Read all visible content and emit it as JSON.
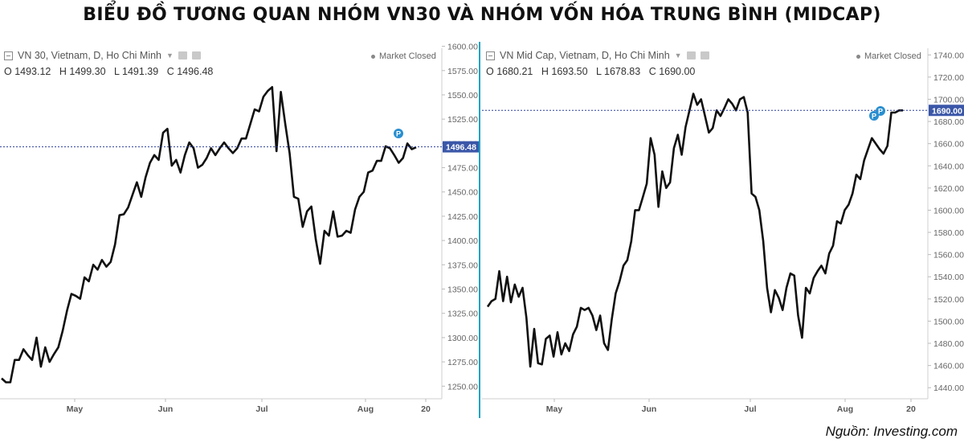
{
  "title": "BIỂU ĐỒ TƯƠNG QUAN NHÓM VN30 VÀ NHÓM VỐN HÓA TRUNG BÌNH (MIDCAP)",
  "source": "Nguồn: Investing.com",
  "panels": [
    {
      "legend": "VN 30, Vietnam, D, Ho Chi Minh",
      "market_status": "Market Closed",
      "ohlc": {
        "o": "O 1493.12",
        "h": "H 1499.30",
        "l": "L 1491.39",
        "c": "C 1496.48"
      }
    },
    {
      "legend": "VN Mid Cap, Vietnam, D, Ho Chi Minh",
      "market_status": "Market Closed",
      "ohlc": {
        "o": "O 1680.21",
        "h": "H 1693.50",
        "l": "L 1678.83",
        "c": "C 1690.00"
      }
    }
  ],
  "chart_data": [
    {
      "type": "line",
      "series": [
        {
          "values": [
            1258,
            1254,
            1254,
            1277,
            1277,
            1288,
            1282,
            1277,
            1300,
            1270,
            1290,
            1275,
            1283,
            1290,
            1307,
            1328,
            1345,
            1343,
            1340,
            1362,
            1358,
            1375,
            1370,
            1380,
            1373,
            1378,
            1396,
            1426,
            1427,
            1434,
            1447,
            1460,
            1445,
            1465,
            1480,
            1488,
            1483,
            1511,
            1515,
            1477,
            1483,
            1470,
            1488,
            1501,
            1495,
            1475,
            1478,
            1485,
            1495,
            1488,
            1495,
            1501,
            1495,
            1490,
            1495,
            1505,
            1505,
            1520,
            1535,
            1533,
            1548,
            1554,
            1558,
            1492,
            1553,
            1520,
            1490,
            1445,
            1443,
            1414,
            1430,
            1435,
            1401,
            1376,
            1410,
            1405,
            1430,
            1404,
            1405,
            1410,
            1408,
            1432,
            1445,
            1450,
            1470,
            1472,
            1482,
            1482,
            1497,
            1495,
            1488,
            1480,
            1485,
            1500,
            1494,
            1496
          ]
        }
      ],
      "x_ticks": [
        "May",
        "Jun",
        "Jul",
        "Aug",
        "20"
      ],
      "y_ticks": [
        1250,
        1275,
        1300,
        1325,
        1350,
        1375,
        1400,
        1425,
        1450,
        1475,
        1500,
        1525,
        1550,
        1575,
        1600
      ],
      "ylim": [
        1237,
        1598
      ],
      "last_value_label": "1496.48",
      "reference_line": 1496.48,
      "marker": "P"
    },
    {
      "type": "line",
      "series": [
        {
          "values": [
            1513,
            1518,
            1520,
            1545,
            1518,
            1540,
            1517,
            1533,
            1522,
            1530,
            1503,
            1459,
            1493,
            1462,
            1461,
            1484,
            1487,
            1468,
            1490,
            1470,
            1480,
            1473,
            1488,
            1495,
            1512,
            1510,
            1512,
            1505,
            1492,
            1505,
            1480,
            1474,
            1502,
            1525,
            1536,
            1550,
            1555,
            1572,
            1600,
            1600,
            1612,
            1624,
            1665,
            1650,
            1603,
            1635,
            1620,
            1625,
            1656,
            1668,
            1650,
            1675,
            1690,
            1705,
            1695,
            1700,
            1685,
            1670,
            1674,
            1690,
            1685,
            1692,
            1700,
            1696,
            1690,
            1700,
            1702,
            1688,
            1615,
            1612,
            1600,
            1572,
            1530,
            1508,
            1528,
            1521,
            1510,
            1530,
            1543,
            1541,
            1505,
            1485,
            1530,
            1525,
            1539,
            1545,
            1550,
            1543,
            1561,
            1568,
            1590,
            1588,
            1600,
            1605,
            1615,
            1632,
            1628,
            1645,
            1655,
            1665,
            1660,
            1655,
            1651,
            1658,
            1688,
            1688,
            1690,
            1690
          ]
        }
      ],
      "x_ticks": [
        "May",
        "Jun",
        "Jul",
        "Aug",
        "20"
      ],
      "y_ticks": [
        1440,
        1460,
        1480,
        1500,
        1520,
        1540,
        1560,
        1580,
        1600,
        1620,
        1640,
        1660,
        1680,
        1700,
        1720,
        1740
      ],
      "ylim": [
        1430,
        1746
      ],
      "last_value_label": "1690.00",
      "reference_line": 1690.0,
      "marker": "P"
    }
  ]
}
